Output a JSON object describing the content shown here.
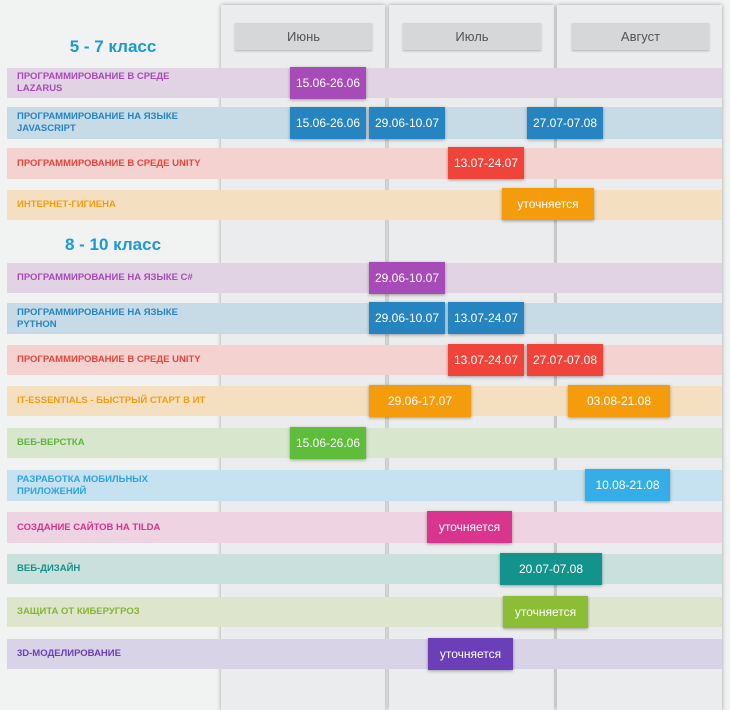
{
  "months": [
    "Июнь",
    "Июль",
    "Август"
  ],
  "groups": [
    {
      "title": "5 - 7 класс",
      "courses": [
        {
          "name": "Программирование в среде Lazarus",
          "colors": {
            "row": "#e2d3e4",
            "text": "#a64bb8"
          },
          "sessions": [
            {
              "label": "15.06-26.06",
              "color": "#a64bb8"
            }
          ]
        },
        {
          "name": "Программирование на языке JavaScript",
          "colors": {
            "row": "#c7dbe7",
            "text": "#2684c0"
          },
          "sessions": [
            {
              "label": "15.06-26.06",
              "color": "#2684c0"
            },
            {
              "label": "29.06-10.07",
              "color": "#2684c0"
            },
            {
              "label": "27.07-07.08",
              "color": "#2684c0"
            }
          ]
        },
        {
          "name": "Программирование в среде Unity",
          "colors": {
            "row": "#f3d2d0",
            "text": "#e8453c"
          },
          "sessions": [
            {
              "label": "13.07-24.07",
              "color": "#f0443a"
            }
          ]
        },
        {
          "name": "Интернет-гигиена",
          "colors": {
            "row": "#f4dfc0",
            "text": "#f39c12"
          },
          "sessions": [
            {
              "label": "уточняется",
              "color": "#f59c0c"
            }
          ]
        }
      ]
    },
    {
      "title": "8 - 10 класс",
      "courses": [
        {
          "name": "Программирование на языке C#",
          "colors": {
            "row": "#e2d3e4",
            "text": "#a64bb8"
          },
          "sessions": [
            {
              "label": "29.06-10.07",
              "color": "#a64bb8"
            }
          ]
        },
        {
          "name": "Программирование на языке Python",
          "colors": {
            "row": "#c7dbe7",
            "text": "#2684c0"
          },
          "sessions": [
            {
              "label": "29.06-10.07",
              "color": "#2684c0"
            },
            {
              "label": "13.07-24.07",
              "color": "#2684c0"
            }
          ]
        },
        {
          "name": "Программирование в среде Unity",
          "colors": {
            "row": "#f3d2d0",
            "text": "#e8453c"
          },
          "sessions": [
            {
              "label": "13.07-24.07",
              "color": "#f0443a"
            },
            {
              "label": "27.07-07.08",
              "color": "#f0443a"
            }
          ]
        },
        {
          "name": "IT-Essentials - быстрый старт в ИТ",
          "colors": {
            "row": "#f4dfc0",
            "text": "#f39c12"
          },
          "sessions": [
            {
              "label": "29.06-17.07",
              "color": "#f59c0c"
            },
            {
              "label": "03.08-21.08",
              "color": "#f59c0c"
            }
          ]
        },
        {
          "name": "Веб-верстка",
          "colors": {
            "row": "#d7e6cd",
            "text": "#5fb43b"
          },
          "sessions": [
            {
              "label": "15.06-26.06",
              "color": "#5fbd3c"
            }
          ]
        },
        {
          "name": "Разработка мобильных приложений",
          "colors": {
            "row": "#c6e1f0",
            "text": "#2ea4de"
          },
          "sessions": [
            {
              "label": "10.08-21.08",
              "color": "#35aee8"
            }
          ]
        },
        {
          "name": "Создание сайтов на Tilda",
          "colors": {
            "row": "#eed3e2",
            "text": "#d6338c"
          },
          "sessions": [
            {
              "label": "уточняется",
              "color": "#d9358f"
            }
          ]
        },
        {
          "name": "Веб-дизайн",
          "colors": {
            "row": "#c9e0dd",
            "text": "#14908a"
          },
          "sessions": [
            {
              "label": "20.07-07.08",
              "color": "#12948c"
            }
          ]
        },
        {
          "name": "Защита от киберугроз",
          "colors": {
            "row": "#dde6cd",
            "text": "#85b434"
          },
          "sessions": [
            {
              "label": "уточняется",
              "color": "#8bbd35"
            }
          ]
        },
        {
          "name": "3D-моделирование",
          "colors": {
            "row": "#d8d3e6",
            "text": "#6a3fb8"
          },
          "sessions": [
            {
              "label": "уточняется",
              "color": "#6a3fb8"
            }
          ]
        }
      ]
    }
  ]
}
